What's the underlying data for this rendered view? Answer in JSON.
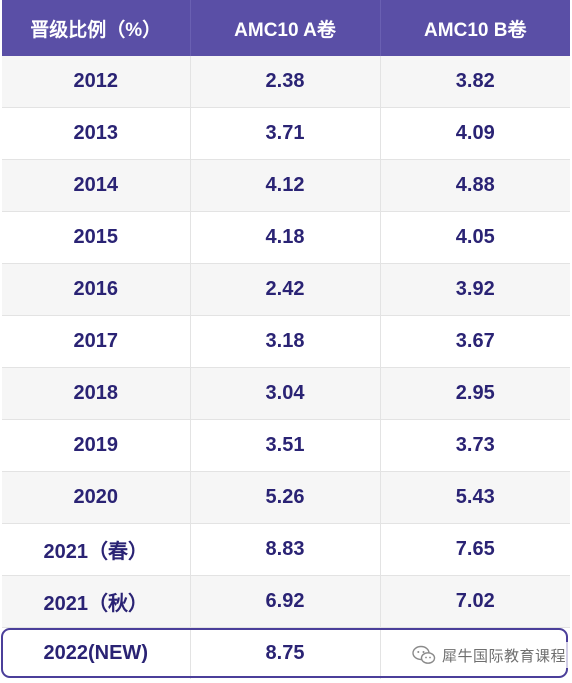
{
  "table": {
    "headers": [
      "晋级比例（%）",
      "AMC10 A卷",
      "AMC10 B卷"
    ],
    "rows": [
      [
        "2012",
        "2.38",
        "3.82"
      ],
      [
        "2013",
        "3.71",
        "4.09"
      ],
      [
        "2014",
        "4.12",
        "4.88"
      ],
      [
        "2015",
        "4.18",
        "4.05"
      ],
      [
        "2016",
        "2.42",
        "3.92"
      ],
      [
        "2017",
        "3.18",
        "3.67"
      ],
      [
        "2018",
        "3.04",
        "2.95"
      ],
      [
        "2019",
        "3.51",
        "3.73"
      ],
      [
        "2020",
        "5.26",
        "5.43"
      ],
      [
        "2021（春）",
        "8.83",
        "7.65"
      ],
      [
        "2021（秋）",
        "6.92",
        "7.02"
      ],
      [
        "2022(NEW)",
        "8.75",
        ""
      ]
    ]
  },
  "watermark": {
    "icon": "wechat-icon",
    "text": "犀牛国际教育课程"
  },
  "colors": {
    "header_bg": "#5a4fa6",
    "header_text": "#ffffff",
    "cell_text": "#2a2374",
    "row_alt_bg": "#f6f6f6",
    "highlight_border": "#4b3f9a"
  }
}
